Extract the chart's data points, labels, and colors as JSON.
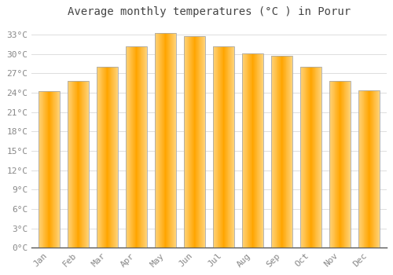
{
  "title": "Average monthly temperatures (°C ) in Porur",
  "months": [
    "Jan",
    "Feb",
    "Mar",
    "Apr",
    "May",
    "Jun",
    "Jul",
    "Aug",
    "Sep",
    "Oct",
    "Nov",
    "Dec"
  ],
  "values": [
    24.2,
    25.8,
    28.0,
    31.2,
    33.2,
    32.8,
    31.2,
    30.1,
    29.7,
    28.0,
    25.8,
    24.4
  ],
  "bar_color_center": "#FFA500",
  "bar_color_edge": "#FFD580",
  "bar_border_color": "#AAAAAA",
  "background_color": "#FFFFFF",
  "plot_bg_color": "#FFFFFF",
  "grid_color": "#DDDDDD",
  "ytick_labels": [
    "0°C",
    "3°C",
    "6°C",
    "9°C",
    "12°C",
    "15°C",
    "18°C",
    "21°C",
    "24°C",
    "27°C",
    "30°C",
    "33°C"
  ],
  "ytick_values": [
    0,
    3,
    6,
    9,
    12,
    15,
    18,
    21,
    24,
    27,
    30,
    33
  ],
  "ylim": [
    0,
    35
  ],
  "title_fontsize": 10,
  "tick_fontsize": 8,
  "tick_font_color": "#888888",
  "axis_line_color": "#555555",
  "font_family": "monospace",
  "bar_width": 0.75
}
